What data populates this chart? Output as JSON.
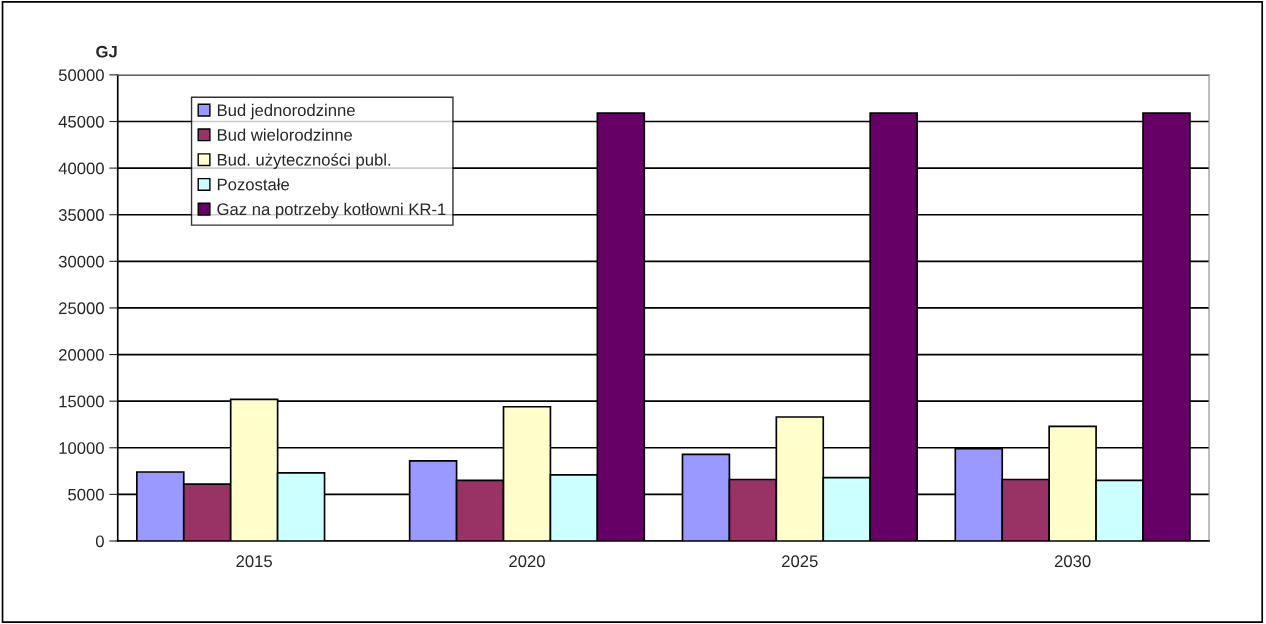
{
  "chart_data": {
    "type": "bar",
    "ylabel": "GJ",
    "categories": [
      "2015",
      "2020",
      "2025",
      "2030"
    ],
    "series": [
      {
        "name": "Bud jednorodzinne",
        "color": "#9999ff",
        "values": [
          7400,
          8600,
          9300,
          9900
        ]
      },
      {
        "name": "Bud wielorodzinne",
        "color": "#993366",
        "values": [
          6100,
          6500,
          6600,
          6600
        ]
      },
      {
        "name": "Bud. użyteczności publ.",
        "color": "#ffffcc",
        "values": [
          15200,
          14400,
          13300,
          12300
        ]
      },
      {
        "name": "Pozostałe",
        "color": "#ccffff",
        "values": [
          7300,
          7100,
          6800,
          6500
        ]
      },
      {
        "name": "Gaz na potrzeby kotłowni KR-1",
        "color": "#660066",
        "values": [
          null,
          45900,
          45900,
          45900
        ]
      }
    ],
    "ylim": [
      0,
      50000
    ],
    "yticks": [
      0,
      5000,
      10000,
      15000,
      20000,
      25000,
      30000,
      35000,
      40000,
      45000,
      50000
    ],
    "grid": "y",
    "legend": "top left"
  }
}
